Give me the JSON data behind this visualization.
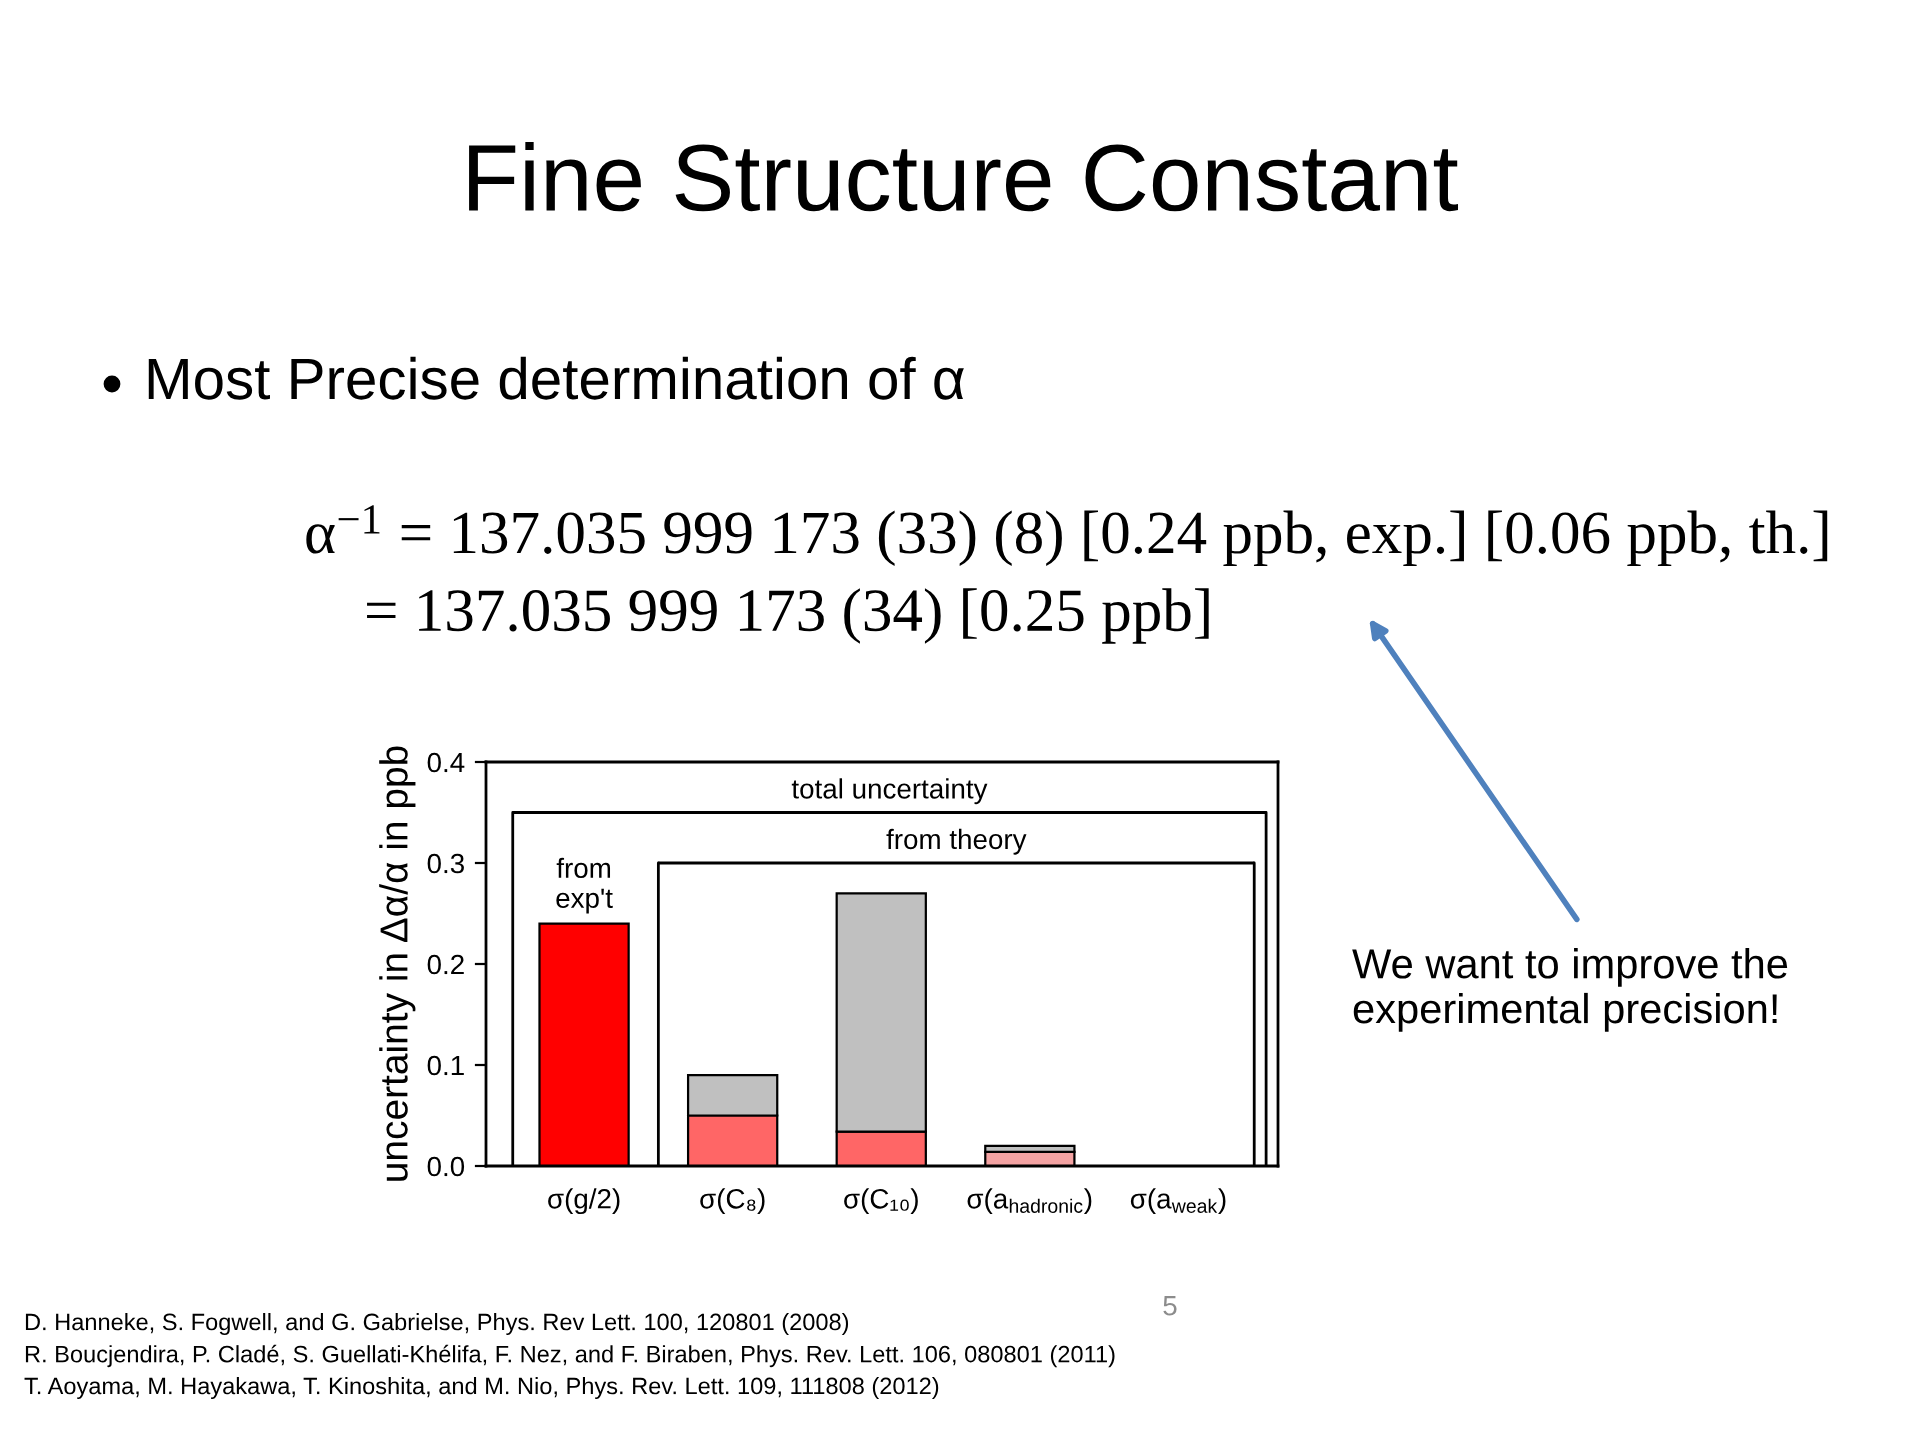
{
  "chart_data": {
    "type": "bar",
    "title": "Fine Structure Constant",
    "subtitle": "Most Precise determination of α",
    "ylabel": "uncertainty in Δα/α in ppb",
    "categories": [
      "σ(g/2)",
      "σ(C₈)",
      "σ(C₁₀)",
      "σ(a$_{hadronic}$)",
      "σ(a$_{weak}$)"
    ],
    "series": [
      {
        "colors": [
          "#ff0000",
          "#ff6666",
          "#ff6666",
          "#f4a3a3",
          null
        ],
        "values": [
          0.24,
          0.05,
          0.034,
          0.014,
          null
        ]
      },
      {
        "color": "#c0c0c0",
        "values": [
          null,
          0.04,
          0.236,
          0.006,
          null
        ]
      }
    ],
    "stacked": true,
    "ylim": [
      0,
      0.4
    ],
    "yticks": [
      {
        "value": 0,
        "label": "0.0"
      },
      0.1,
      0.2,
      0.3,
      0.4
    ],
    "ref_lines": [
      {
        "axis": "y",
        "value": 0.35,
        "label": "total uncertainty"
      },
      {
        "axis": "y",
        "value": 0.3,
        "label": "from theory"
      }
    ],
    "annotations": [
      "α$^{−1}$ = 137.035 999 173 (33) (8) [0.24 ppb, exp.] [0.06 ppb, th.]",
      "= 137.035 999 173 (34) [0.25 ppb]",
      "from exp't",
      "We want to improve the experimental precision!",
      "D. Hanneke, S. Fogwell, and G. Gabrielse, Phys. Rev Lett. 100, 120801 (2008)",
      "R. Boucjendira, P. Cladé, S. Guellati-Khélifa, F. Nez, and F. Biraben, Phys. Rev. Lett. 106, 080801 (2011)",
      "T. Aoyama, M. Hayakawa, T. Kinoshita, and M. Nio, Phys. Rev. Lett. 109, 111808 (2012)",
      "5"
    ]
  }
}
